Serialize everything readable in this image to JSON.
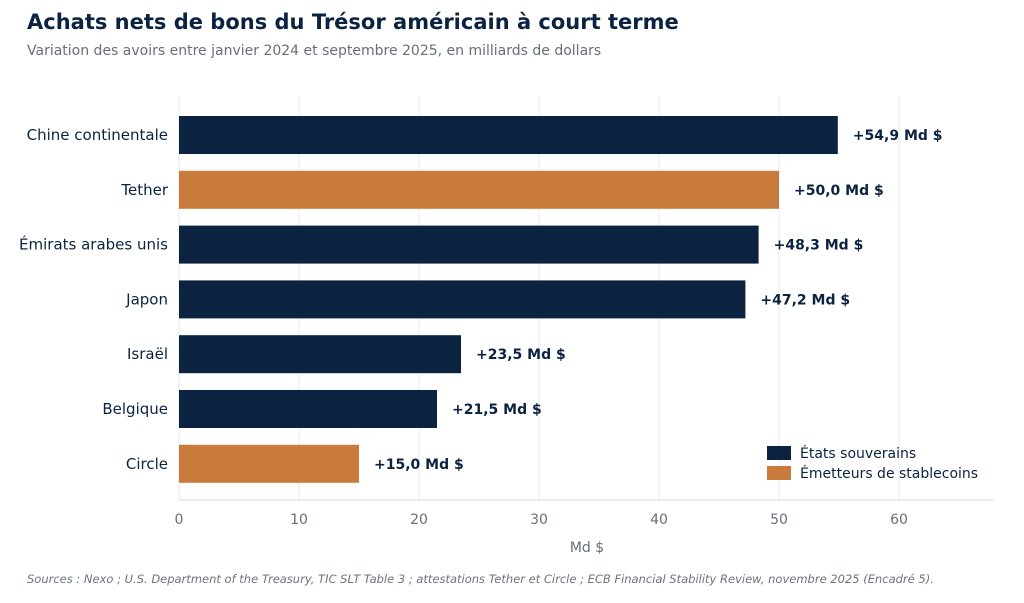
{
  "chart_data": {
    "type": "bar",
    "orientation": "horizontal",
    "title": "Achats nets de bons du Trésor américain à court terme",
    "subtitle": "Variation des avoirs entre janvier 2024 et septembre 2025, en milliards de dollars",
    "xlabel": "Md $",
    "xlim": [
      0,
      68
    ],
    "xticks": [
      0,
      10,
      20,
      30,
      40,
      50,
      60
    ],
    "grid": true,
    "legend_position": "bottom-right",
    "categories": [
      "Chine continentale",
      "Tether",
      "Émirats arabes unis",
      "Japon",
      "Israël",
      "Belgique",
      "Circle"
    ],
    "values": [
      54.9,
      50.0,
      48.3,
      47.2,
      23.5,
      21.5,
      15.0
    ],
    "data_labels": [
      "+54,9 Md $",
      "+50,0 Md $",
      "+48,3 Md $",
      "+47,2 Md $",
      "+23,5 Md $",
      "+21,5 Md $",
      "+15,0 Md $"
    ],
    "groups": [
      "sovereign",
      "stablecoin",
      "sovereign",
      "sovereign",
      "sovereign",
      "sovereign",
      "stablecoin"
    ],
    "legend": [
      {
        "key": "sovereign",
        "label": "États souverains",
        "color": "#0b2340"
      },
      {
        "key": "stablecoin",
        "label": "Émetteurs de stablecoins",
        "color": "#c87b3a"
      }
    ],
    "source": "Sources : Nexo ; U.S. Department of the Treasury, TIC SLT Table 3 ; attestations Tether et Circle ; ECB Financial Stability Review, novembre 2025 (Encadré 5)."
  }
}
